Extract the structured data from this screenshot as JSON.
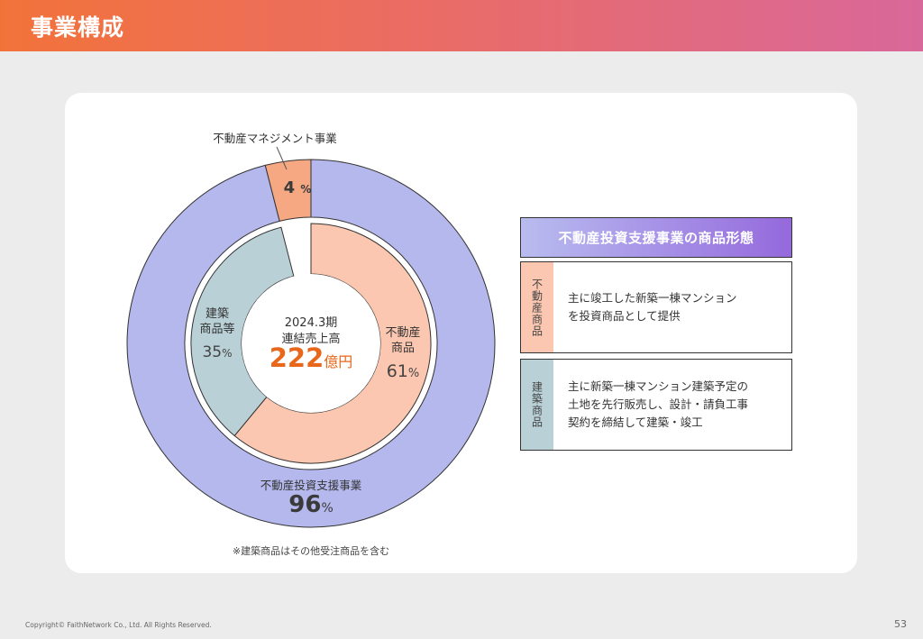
{
  "header": {
    "title": "事業構成"
  },
  "chart_data": [
    {
      "type": "pie",
      "variant": "donut-outer",
      "labels": [
        "不動産投資支援事業",
        "不動産マネジメント事業"
      ],
      "values": [
        96,
        4
      ],
      "value_texts": [
        "96",
        "4"
      ],
      "unit": "%",
      "colors": [
        "#b4b8ec",
        "#f6a882"
      ]
    },
    {
      "type": "pie",
      "variant": "donut-inner",
      "labels": [
        "不動産\n商品",
        "建築\n商品等"
      ],
      "values": [
        61,
        35
      ],
      "value_texts": [
        "61",
        "35"
      ],
      "unit": "%",
      "colors": [
        "#fbc7b0",
        "#b9d0d6"
      ],
      "center": {
        "period": "2024.3期",
        "metric": "連結売上高",
        "value": "222",
        "unit": "億円"
      }
    }
  ],
  "footnote": "※建築商品はその他受注商品を含む",
  "panel": {
    "title": "不動産投資支援事業の商品形態",
    "rows": [
      {
        "tag": "不動産商品",
        "tag_color": "#fbc7b0",
        "text": "主に竣工した新築一棟マンション\nを投資商品として提供"
      },
      {
        "tag": "建築商品",
        "tag_color": "#b9d0d6",
        "text": "主に新築一棟マンション建築予定の\n土地を先行販売し、設計・請負工事\n契約を締結して建築・竣工"
      }
    ]
  },
  "footer": {
    "copyright": "Copyright© FaithNetwork Co., Ltd. All Rights Reserved.",
    "page": "53"
  },
  "colors": {
    "accent": "#e8671b",
    "header_start": "#f2733a",
    "header_end": "#d9689a"
  }
}
